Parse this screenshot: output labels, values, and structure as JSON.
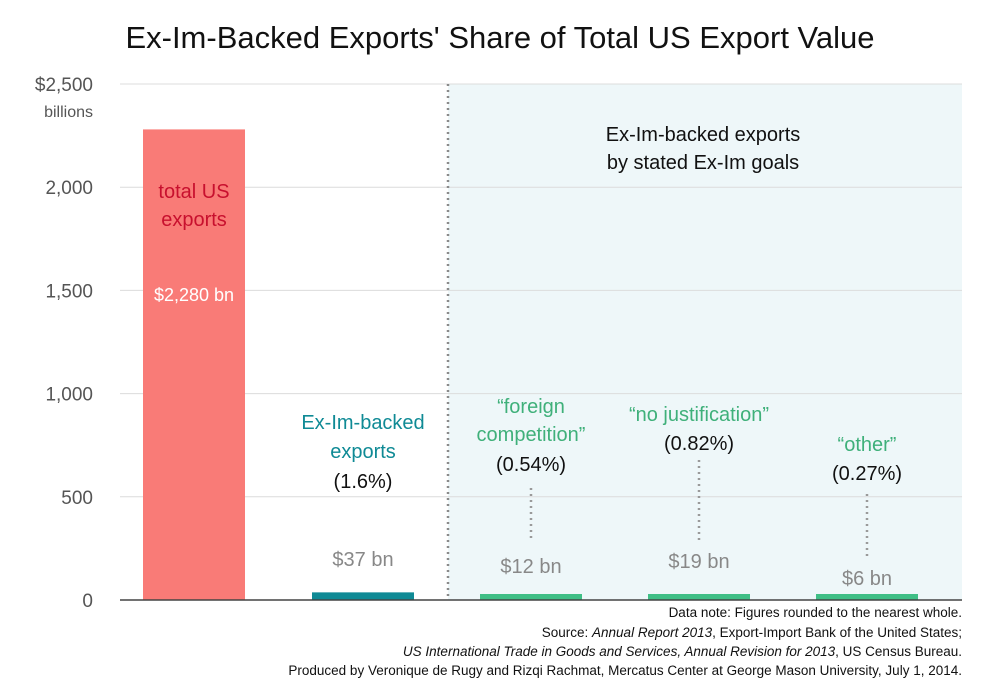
{
  "chart_data": {
    "type": "bar",
    "title": "Ex-Im-Backed Exports' Share of Total US Export Value",
    "ylabel": "billions",
    "y_tick_labels": [
      "0",
      "500",
      "1,000",
      "1,500",
      "2,000",
      "$2,500"
    ],
    "ylim": [
      0,
      2500
    ],
    "grid": true,
    "categories": [
      "total US exports",
      "Ex-Im-backed exports",
      "“foreign competition”",
      "“no justification”",
      "“other”"
    ],
    "values": [
      2280,
      37,
      12,
      19,
      6
    ],
    "bars": [
      {
        "name_lines": [
          "total US",
          "exports"
        ],
        "share": "",
        "value_label": "$2,280 bn",
        "color": "#f97b77",
        "name_color": "#c8102e",
        "value_color": "#ffffff"
      },
      {
        "name_lines": [
          "Ex-Im-backed",
          "exports"
        ],
        "share": "(1.6%)",
        "value_label": "$37 bn",
        "color": "#0f8a95",
        "name_color": "#0f8a95",
        "value_color": "#888888"
      },
      {
        "name_lines": [
          "“foreign",
          "competition”"
        ],
        "share": "(0.54%)",
        "value_label": "$12 bn",
        "color": "#3fbf86",
        "name_color": "#3fb07a",
        "value_color": "#888888"
      },
      {
        "name_lines": [
          "“no justification”"
        ],
        "share": "(0.82%)",
        "value_label": "$19 bn",
        "color": "#3fbf86",
        "name_color": "#3fb07a",
        "value_color": "#888888"
      },
      {
        "name_lines": [
          "“other”"
        ],
        "share": "(0.27%)",
        "value_label": "$6 bn",
        "color": "#3fbf86",
        "name_color": "#3fb07a",
        "value_color": "#888888"
      }
    ],
    "panel_label_lines": [
      "Ex-Im-backed exports",
      "by stated Ex-Im goals"
    ],
    "panel_color": "#eef7f9",
    "notes": {
      "line1": "Data note: Figures rounded to the nearest whole.",
      "line2_prefix": "Source: ",
      "line2_italic": "Annual Report 2013",
      "line2_suffix": ", Export-Import Bank of the United States;",
      "line3_italic": "US International Trade in Goods and Services, Annual Revision for 2013",
      "line3_suffix": ", US Census Bureau.",
      "line4": "Produced by Veronique de Rugy and Rizqi Rachmat, Mercatus Center at George Mason University, July 1, 2014."
    }
  }
}
